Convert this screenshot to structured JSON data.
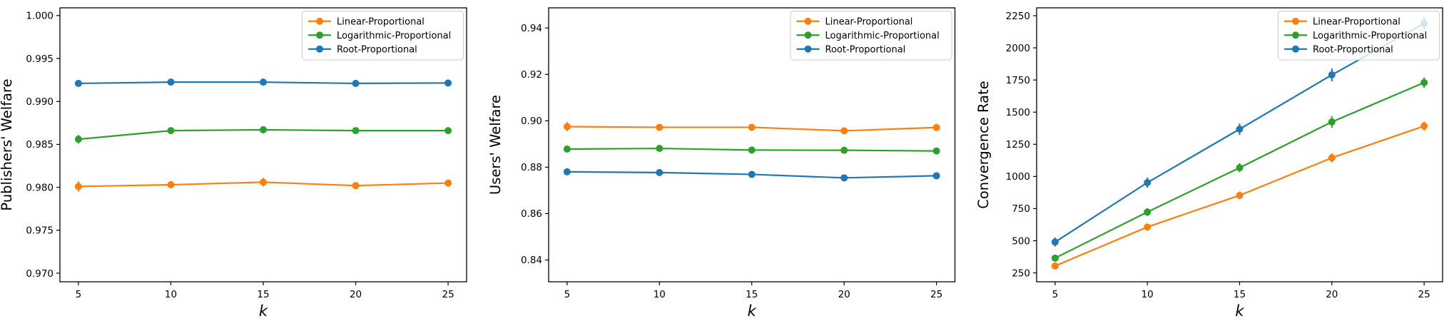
{
  "figure": {
    "background": "#ffffff",
    "n_subplots": 3
  },
  "colors": {
    "linear_proportional": "#ff7f0e",
    "logarithmic_proportional": "#2ca02c",
    "root_proportional": "#1f77b4",
    "spine": "#000000",
    "legend_border": "#cccccc",
    "legend_background": "#ffffff"
  },
  "chart_data": [
    {
      "type": "line",
      "title": "",
      "xlabel": "k",
      "ylabel": "Publishers' Welfare",
      "x": [
        5,
        10,
        15,
        20,
        25
      ],
      "xtick_labels": [
        "5",
        "10",
        "15",
        "20",
        "25"
      ],
      "xlim": [
        4,
        26
      ],
      "ylim": [
        0.969,
        1.0009
      ],
      "yticks": [
        0.97,
        0.975,
        0.98,
        0.985,
        0.99,
        0.995,
        1.0
      ],
      "ytick_labels": [
        "0.970",
        "0.975",
        "0.980",
        "0.985",
        "0.990",
        "0.995",
        "1.000"
      ],
      "grid": false,
      "legend_position": "upper right",
      "series": [
        {
          "name": "Linear-Proportional",
          "color": "#ff7f0e",
          "values": [
            0.9801,
            0.9803,
            0.9806,
            0.9802,
            0.9805
          ],
          "err": [
            0.0006,
            0.0004,
            0.0005,
            0.0003,
            0.0004
          ]
        },
        {
          "name": "Logarithmic-Proportional",
          "color": "#2ca02c",
          "values": [
            0.9856,
            0.9866,
            0.9867,
            0.9866,
            0.9866
          ],
          "err": [
            0.0005,
            0.0003,
            0.0004,
            0.0003,
            0.0003
          ]
        },
        {
          "name": "Root-Proportional",
          "color": "#1f77b4",
          "values": [
            0.9921,
            0.99225,
            0.99225,
            0.9921,
            0.99215
          ],
          "err": [
            0.0003,
            0.0004,
            0.0004,
            0.0003,
            0.0003
          ]
        }
      ]
    },
    {
      "type": "line",
      "title": "",
      "xlabel": "k",
      "ylabel": "Users' Welfare",
      "x": [
        5,
        10,
        15,
        20,
        25
      ],
      "xtick_labels": [
        "5",
        "10",
        "15",
        "20",
        "25"
      ],
      "xlim": [
        4,
        26
      ],
      "ylim": [
        0.8306,
        0.9487
      ],
      "yticks": [
        0.84,
        0.86,
        0.88,
        0.9,
        0.92,
        0.94
      ],
      "ytick_labels": [
        "0.84",
        "0.86",
        "0.88",
        "0.90",
        "0.92",
        "0.94"
      ],
      "grid": false,
      "legend_position": "upper right",
      "series": [
        {
          "name": "Linear-Proportional",
          "color": "#ff7f0e",
          "values": [
            0.8975,
            0.8972,
            0.8972,
            0.8957,
            0.8971
          ],
          "err": [
            0.002,
            0.0013,
            0.0011,
            0.001,
            0.001
          ]
        },
        {
          "name": "Logarithmic-Proportional",
          "color": "#2ca02c",
          "values": [
            0.8878,
            0.8881,
            0.8874,
            0.8873,
            0.887
          ],
          "err": [
            0.0014,
            0.0012,
            0.0009,
            0.0008,
            0.0008
          ]
        },
        {
          "name": "Root-Proportional",
          "color": "#1f77b4",
          "values": [
            0.878,
            0.8777,
            0.8769,
            0.8754,
            0.8763
          ],
          "err": [
            0.0013,
            0.001,
            0.0009,
            0.0009,
            0.0008
          ]
        }
      ]
    },
    {
      "type": "line",
      "title": "",
      "xlabel": "k",
      "ylabel": "Convergence Rate",
      "x": [
        5,
        10,
        15,
        20,
        25
      ],
      "xtick_labels": [
        "5",
        "10",
        "15",
        "20",
        "25"
      ],
      "xlim": [
        4,
        26
      ],
      "ylim": [
        181,
        2311
      ],
      "yticks": [
        250,
        500,
        750,
        1000,
        1250,
        1500,
        1750,
        2000,
        2250
      ],
      "ytick_labels": [
        "250",
        "500",
        "750",
        "1000",
        "1250",
        "1500",
        "1750",
        "2000",
        "2250"
      ],
      "grid": false,
      "legend_position": "upper right",
      "series": [
        {
          "name": "Linear-Proportional",
          "color": "#ff7f0e",
          "values": [
            304,
            607,
            853,
            1145,
            1392
          ],
          "err": [
            25,
            25,
            30,
            35,
            35
          ]
        },
        {
          "name": "Logarithmic-Proportional",
          "color": "#2ca02c",
          "values": [
            365,
            723,
            1068,
            1424,
            1730
          ],
          "err": [
            25,
            30,
            35,
            45,
            40
          ]
        },
        {
          "name": "Root-Proportional",
          "color": "#1f77b4",
          "values": [
            490,
            952,
            1368,
            1790,
            2190
          ],
          "err": [
            35,
            40,
            45,
            50,
            50
          ]
        }
      ]
    }
  ]
}
